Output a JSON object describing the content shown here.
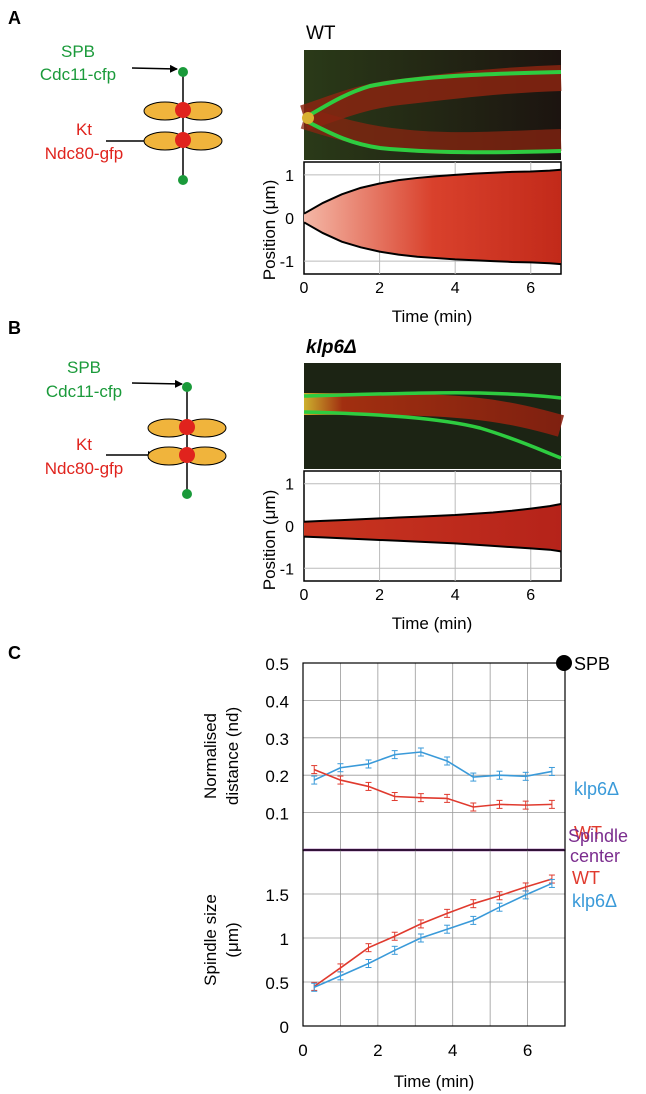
{
  "panels": {
    "A": {
      "letter": "A",
      "title": "WT",
      "schematic": {
        "spb_name": "SPB",
        "spb_marker": "Cdc11-cfp",
        "kt_name": "Kt",
        "kt_marker": "Ndc80-gfp"
      }
    },
    "B": {
      "letter": "B",
      "title": "klp6Δ",
      "schematic": {
        "spb_name": "SPB",
        "spb_marker": "Cdc11-cfp",
        "kt_name": "Kt",
        "kt_marker": "Ndc80-gfp"
      }
    },
    "C": {
      "letter": "C",
      "spb_label": "SPB",
      "center_label_line1": "Spindle",
      "center_label_line2": "center",
      "labels_top": {
        "klp6": "klp6Δ",
        "wt": "WT"
      },
      "labels_bottom": {
        "wt": "WT",
        "klp6": "klp6Δ"
      }
    }
  },
  "colors": {
    "wt": "#e03a2e",
    "klp6": "#3a9ad9",
    "center": "#7b2d8e",
    "green": "#1a9a3a",
    "red": "#e0231d",
    "orange": "#f0b43c"
  },
  "chart_data": [
    {
      "id": "kymo-A",
      "type": "area",
      "xlabel": "Time (min)",
      "ylabel": "Position (μm)",
      "xlim": [
        0,
        6.8
      ],
      "ylim": [
        -1.3,
        1.3
      ],
      "xticks": [
        0,
        2,
        4,
        6
      ],
      "yticks": [
        1,
        0,
        -1
      ],
      "grid": true,
      "x": [
        0,
        0.5,
        1,
        1.5,
        2,
        2.5,
        3,
        3.5,
        4,
        4.5,
        5,
        5.5,
        6,
        6.5,
        6.8
      ],
      "upper": [
        0.1,
        0.35,
        0.55,
        0.7,
        0.8,
        0.88,
        0.93,
        0.97,
        1.0,
        1.03,
        1.05,
        1.07,
        1.08,
        1.1,
        1.12
      ],
      "lower": [
        -0.1,
        -0.35,
        -0.55,
        -0.68,
        -0.78,
        -0.85,
        -0.9,
        -0.93,
        -0.96,
        -0.98,
        -1.0,
        -1.02,
        -1.03,
        -1.05,
        -1.07
      ]
    },
    {
      "id": "kymo-B",
      "type": "area",
      "xlabel": "Time (min)",
      "ylabel": "Position (μm)",
      "xlim": [
        0,
        6.8
      ],
      "ylim": [
        -1.3,
        1.3
      ],
      "xticks": [
        0,
        2,
        4,
        6
      ],
      "yticks": [
        1,
        0,
        -1
      ],
      "grid": true,
      "x": [
        0,
        0.5,
        1,
        1.5,
        2,
        2.5,
        3,
        3.5,
        4,
        4.5,
        5,
        5.5,
        6,
        6.5,
        6.8
      ],
      "upper": [
        0.1,
        0.12,
        0.14,
        0.16,
        0.18,
        0.2,
        0.22,
        0.24,
        0.26,
        0.29,
        0.32,
        0.36,
        0.41,
        0.47,
        0.52
      ],
      "lower": [
        -0.25,
        -0.27,
        -0.29,
        -0.31,
        -0.33,
        -0.35,
        -0.37,
        -0.39,
        -0.41,
        -0.44,
        -0.47,
        -0.5,
        -0.53,
        -0.56,
        -0.6
      ]
    },
    {
      "id": "nd",
      "type": "line",
      "ylabel": "Normalised distance (nd)",
      "xlim": [
        0,
        7
      ],
      "ylim": [
        0,
        0.5
      ],
      "yticks": [
        0.5,
        0.4,
        0.3,
        0.2,
        0.1
      ],
      "grid": true,
      "x": [
        0.3,
        1,
        1.75,
        2.45,
        3.15,
        3.85,
        4.55,
        5.25,
        5.95,
        6.65
      ],
      "series": [
        {
          "name": "klp6Δ",
          "key": "klp6",
          "values": [
            0.187,
            0.22,
            0.23,
            0.255,
            0.262,
            0.238,
            0.195,
            0.2,
            0.197,
            0.21
          ]
        },
        {
          "name": "WT",
          "key": "wt",
          "values": [
            0.215,
            0.187,
            0.17,
            0.143,
            0.14,
            0.138,
            0.115,
            0.122,
            0.12,
            0.122
          ]
        }
      ]
    },
    {
      "id": "size",
      "type": "line",
      "xlabel": "Time (min)",
      "ylabel": "Spindle size (μm)",
      "xlim": [
        0,
        7
      ],
      "ylim": [
        0,
        2
      ],
      "xticks": [
        0,
        2,
        4,
        6
      ],
      "yticks": [
        1.5,
        1,
        0.5,
        0
      ],
      "grid": true,
      "x": [
        0.3,
        1,
        1.75,
        2.45,
        3.15,
        3.85,
        4.55,
        5.25,
        5.95,
        6.65
      ],
      "series": [
        {
          "name": "WT",
          "key": "wt",
          "values": [
            0.45,
            0.66,
            0.89,
            1.02,
            1.16,
            1.28,
            1.39,
            1.48,
            1.58,
            1.67
          ]
        },
        {
          "name": "klp6Δ",
          "key": "klp6",
          "values": [
            0.44,
            0.57,
            0.71,
            0.86,
            1.0,
            1.1,
            1.2,
            1.35,
            1.49,
            1.62
          ]
        }
      ]
    }
  ]
}
